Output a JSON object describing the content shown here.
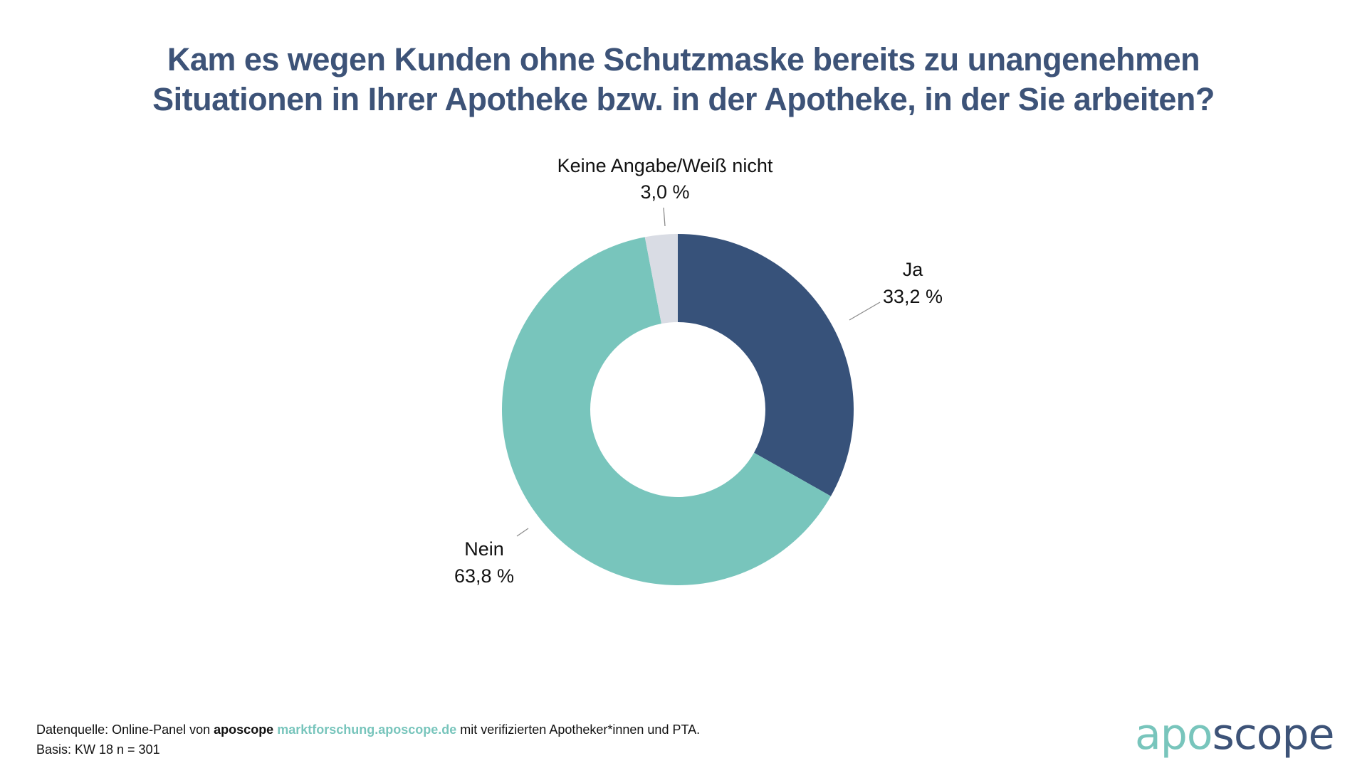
{
  "colors": {
    "title": "#3d5378",
    "brand_teal": "#78c5bc",
    "brand_navy": "#3d5378",
    "leader_line": "#8c8c8c"
  },
  "title_lines": [
    "Kam es wegen Kunden ohne Schutzmaske bereits zu unangenehmen",
    "Situationen in Ihrer Apotheke bzw. in der Apotheke, in der Sie arbeiten?"
  ],
  "chart_data": {
    "type": "pie",
    "variant": "donut",
    "title": "Kam es wegen Kunden ohne Schutzmaske bereits zu unangenehmen Situationen in Ihrer Apotheke bzw. in der Apotheke, in der Sie arbeiten?",
    "start": "12 o'clock",
    "direction": "clockwise",
    "unit": "%",
    "slices": [
      {
        "name": "Ja",
        "value": 33.2,
        "label": "33,2 %",
        "color": "#37527a",
        "label_position": "right"
      },
      {
        "name": "Nein",
        "value": 63.8,
        "label": "63,8 %",
        "color": "#78c5bc",
        "label_position": "bottom-left"
      },
      {
        "name": "Keine Angabe/Weiß nicht",
        "value": 3.0,
        "label": "3,0 %",
        "color": "#d9dce4",
        "label_position": "top"
      }
    ]
  },
  "footer": {
    "source_prefix": "Datenquelle: Online-Panel von ",
    "brand": "aposcope",
    "link": "marktforschung.aposcope.de",
    "source_suffix": " mit verifizierten Apotheker*innen und PTA.",
    "basis": "Basis: KW 18 n = 301"
  },
  "logo": {
    "part1": "apo",
    "part2": "scope"
  }
}
